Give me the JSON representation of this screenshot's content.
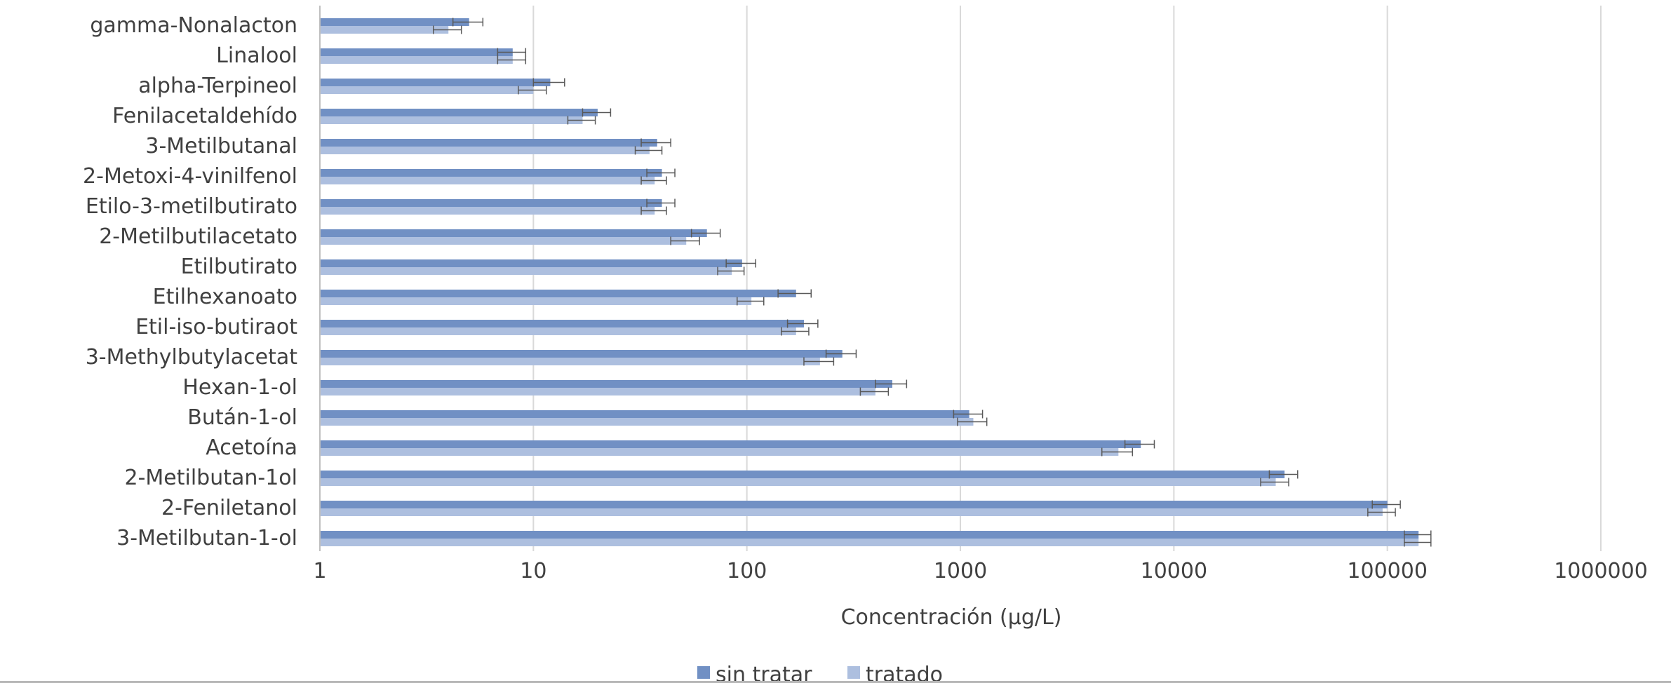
{
  "chart_data": {
    "type": "bar",
    "orientation": "horizontal",
    "x_scale": "log",
    "xlim": [
      1,
      1000000
    ],
    "x_ticks": [
      "1",
      "10",
      "100",
      "1000",
      "10000",
      "100000",
      "1000000"
    ],
    "xlabel": "Concentración (µg/L)",
    "ylabel": "",
    "title": "",
    "grid": true,
    "legend_position": "bottom",
    "categories": [
      "gamma-Nonalacton",
      "Linalool",
      "alpha-Terpineol",
      "Fenilacetaldehído",
      "3-Metilbutanal",
      "2-Metoxi-4-vinilfenol",
      "Etilo-3-metilbutirato",
      "2-Metilbutilacetato",
      "Etilbutirato",
      "Etilhexanoato",
      "Etil-iso-butiraot",
      "3-Methylbutylacetat",
      "Hexan-1-ol",
      "Bután-1-ol",
      "Acetoína",
      "2-Metilbutan-1ol",
      "2-Feniletanol",
      "3-Metilbutan-1-ol"
    ],
    "series": [
      {
        "name": "sin tratar",
        "color": "#7190c4",
        "values": [
          5,
          8,
          12,
          20,
          38,
          40,
          40,
          65,
          95,
          170,
          185,
          280,
          480,
          1100,
          7000,
          33000,
          100000,
          140000
        ],
        "errors": [
          0.8,
          1.2,
          2,
          3,
          6,
          6,
          6,
          10,
          15,
          30,
          30,
          45,
          80,
          170,
          1100,
          5000,
          15000,
          20000
        ]
      },
      {
        "name": "tratado",
        "color": "#adbfdf",
        "values": [
          4,
          8,
          10,
          17,
          35,
          37,
          37,
          52,
          85,
          105,
          170,
          220,
          400,
          1150,
          5500,
          30000,
          95000,
          140000
        ],
        "errors": [
          0.6,
          1.2,
          1.5,
          2.5,
          5,
          5,
          5,
          8,
          12,
          15,
          25,
          35,
          60,
          180,
          900,
          4500,
          14000,
          20000
        ]
      }
    ]
  },
  "colors": {
    "gridline": "#d9d9d9",
    "axis": "#bfbfbf",
    "text": "#404040",
    "errorbar": "#595959"
  }
}
